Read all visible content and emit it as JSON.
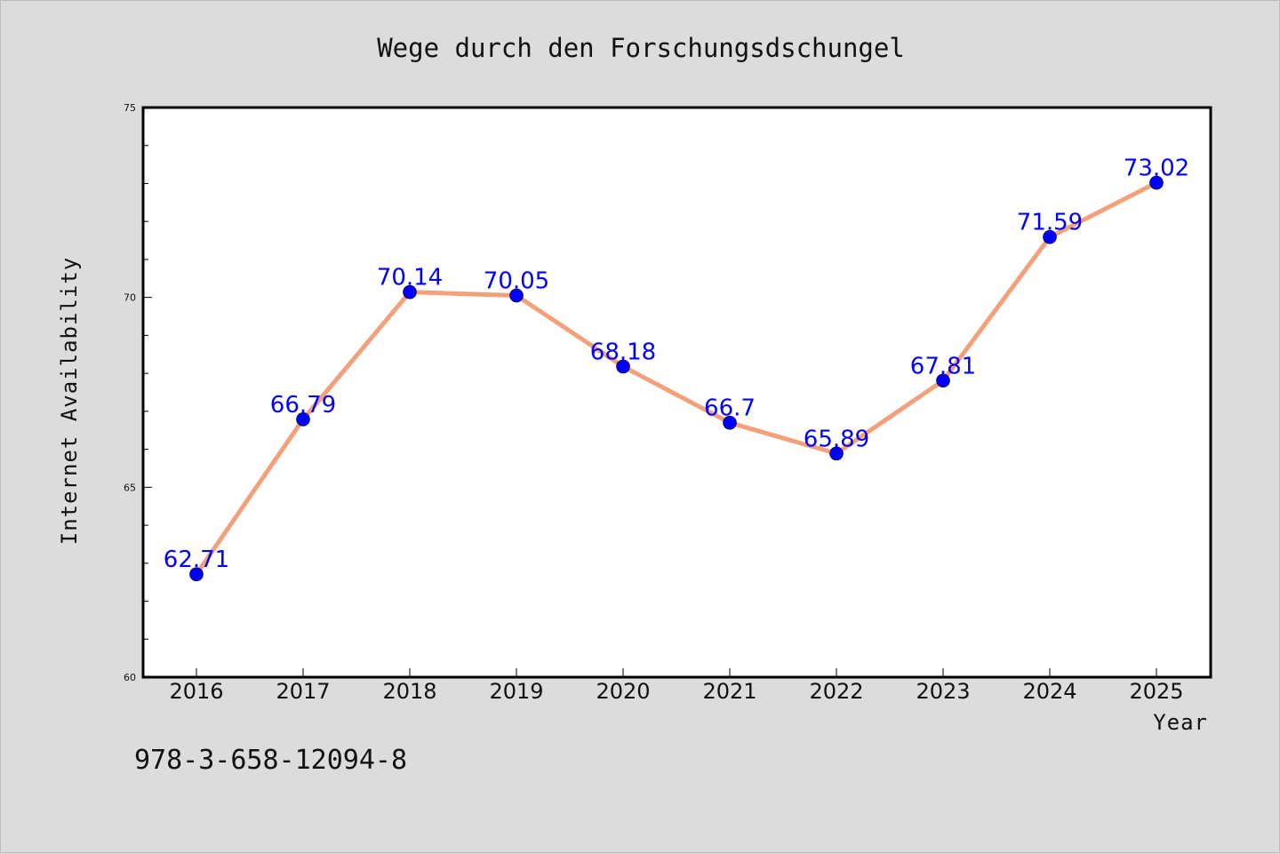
{
  "chart_data": {
    "type": "line",
    "title": "Wege durch den Forschungsdschungel",
    "xlabel": "Year",
    "ylabel": "Internet Availability",
    "x": [
      "2016",
      "2017",
      "2018",
      "2019",
      "2020",
      "2021",
      "2022",
      "2023",
      "2024",
      "2025"
    ],
    "series": [
      {
        "values": [
          62.71,
          66.79,
          70.14,
          70.05,
          68.18,
          66.7,
          65.89,
          67.81,
          71.59,
          73.02
        ],
        "data_labels": [
          "62.71",
          "66.79",
          "70.14",
          "70.05",
          "68.18",
          "66.7",
          "65.89",
          "67.81",
          "71.59",
          "73.02"
        ],
        "line_color": "#f4a07a",
        "marker_color": "#0000ff",
        "label_color": "#0000ff"
      }
    ],
    "ylim": [
      60,
      75
    ],
    "yticks": [
      "60",
      "65",
      "70",
      "75"
    ],
    "grid": false,
    "legend": "none",
    "background_color": "#dcdcdc",
    "plot_background_color": "#ffffff"
  },
  "annotation": {
    "isbn": "978-3-658-12094-8"
  }
}
